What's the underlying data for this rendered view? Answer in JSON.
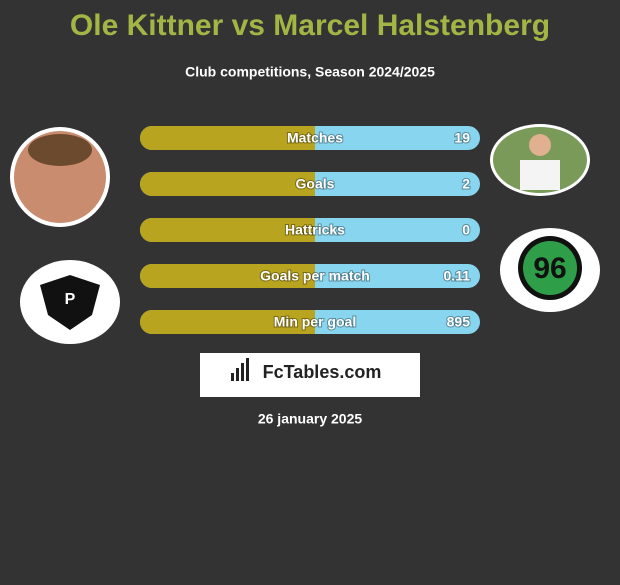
{
  "header": {
    "title": "Ole Kittner vs Marcel Halstenberg",
    "subtitle": "Club competitions, Season 2024/2025"
  },
  "rows": [
    {
      "label": "Matches",
      "value": 19
    },
    {
      "label": "Goals",
      "value": 2
    },
    {
      "label": "Hattricks",
      "value": 0
    },
    {
      "label": "Goals per match",
      "value": 0.11
    },
    {
      "label": "Min per goal",
      "value": 895
    }
  ],
  "logo": "FcTables.com",
  "date": "26 january 2025"
}
